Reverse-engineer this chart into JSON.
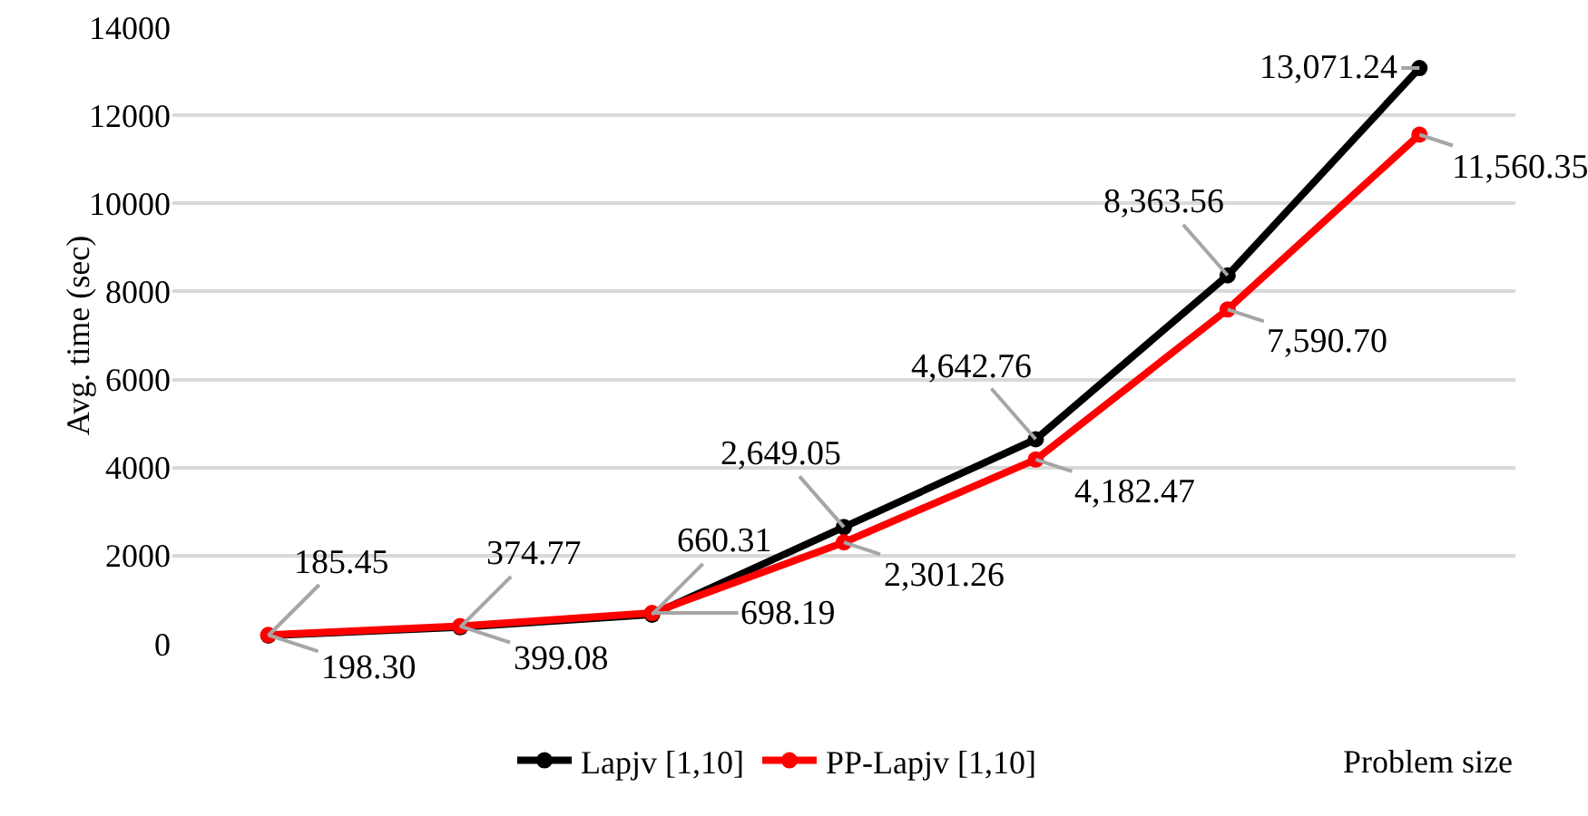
{
  "chart_data": {
    "type": "line",
    "xlabel": "Problem size",
    "ylabel": "Avg. time (sec)",
    "categories": [
      null,
      null,
      null,
      null,
      null,
      null,
      null
    ],
    "series": [
      {
        "name": "Lapjv [1,10]",
        "color": "#000000",
        "values": [
          185.45,
          374.77,
          660.31,
          2649.05,
          4642.76,
          8363.56,
          13071.24
        ],
        "value_labels": [
          "185.45",
          "374.77",
          "660.31",
          "2,649.05",
          "4,642.76",
          "8,363.56",
          "13,071.24"
        ]
      },
      {
        "name": "PP-Lapjv [1,10]",
        "color": "#ff0000",
        "values": [
          198.3,
          399.08,
          698.19,
          2301.26,
          4182.47,
          7590.7,
          11560.35
        ],
        "value_labels": [
          "198.30",
          "399.08",
          "698.19",
          "2,301.26",
          "4,182.47",
          "7,590.70",
          "11,560.35"
        ]
      }
    ],
    "ylim": [
      0,
      14000
    ],
    "yticks": [
      0,
      2000,
      4000,
      6000,
      8000,
      10000,
      12000,
      14000
    ],
    "grid": "y",
    "legend": "bottom",
    "marker": "circle",
    "line_style": "solid"
  }
}
